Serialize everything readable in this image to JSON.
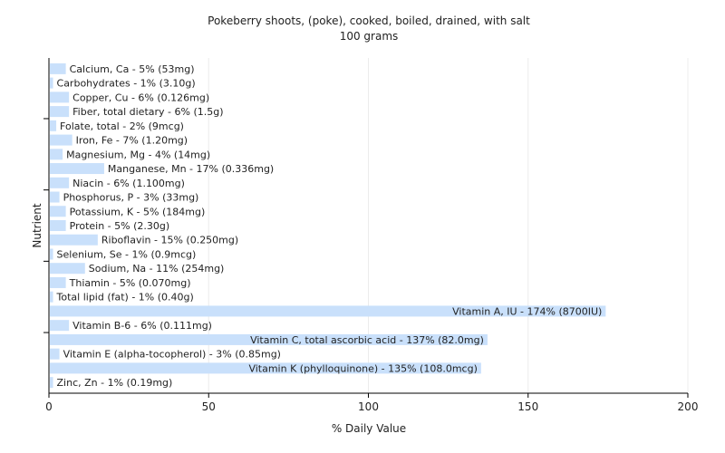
{
  "chart_data": {
    "type": "bar",
    "orientation": "horizontal",
    "title": "Pokeberry shoots, (poke), cooked, boiled, drained, with salt",
    "subtitle": "100 grams",
    "xlabel": "% Daily Value",
    "ylabel": "Nutrient",
    "xlim": [
      0,
      200
    ],
    "xticks": [
      0,
      50,
      100,
      150,
      200
    ],
    "grid": true,
    "bar_color": "#c9e0fb",
    "grid_color": "#ececec",
    "categories": [
      "Calcium, Ca - 5% (53mg)",
      "Carbohydrates - 1% (3.10g)",
      "Copper, Cu - 6% (0.126mg)",
      "Fiber, total dietary - 6% (1.5g)",
      "Folate, total - 2% (9mcg)",
      "Iron, Fe - 7% (1.20mg)",
      "Magnesium, Mg - 4% (14mg)",
      "Manganese, Mn - 17% (0.336mg)",
      "Niacin - 6% (1.100mg)",
      "Phosphorus, P - 3% (33mg)",
      "Potassium, K - 5% (184mg)",
      "Protein - 5% (2.30g)",
      "Riboflavin - 15% (0.250mg)",
      "Selenium, Se - 1% (0.9mcg)",
      "Sodium, Na - 11% (254mg)",
      "Thiamin - 5% (0.070mg)",
      "Total lipid (fat) - 1% (0.40g)",
      "Vitamin A, IU - 174% (8700IU)",
      "Vitamin B-6 - 6% (0.111mg)",
      "Vitamin C, total ascorbic acid - 137% (82.0mg)",
      "Vitamin E (alpha-tocopherol) - 3% (0.85mg)",
      "Vitamin K (phylloquinone) - 135% (108.0mcg)",
      "Zinc, Zn - 1% (0.19mg)"
    ],
    "values": [
      5,
      1,
      6,
      6,
      2,
      7,
      4,
      17,
      6,
      3,
      5,
      5,
      15,
      1,
      11,
      5,
      1,
      174,
      6,
      137,
      3,
      135,
      1
    ]
  }
}
